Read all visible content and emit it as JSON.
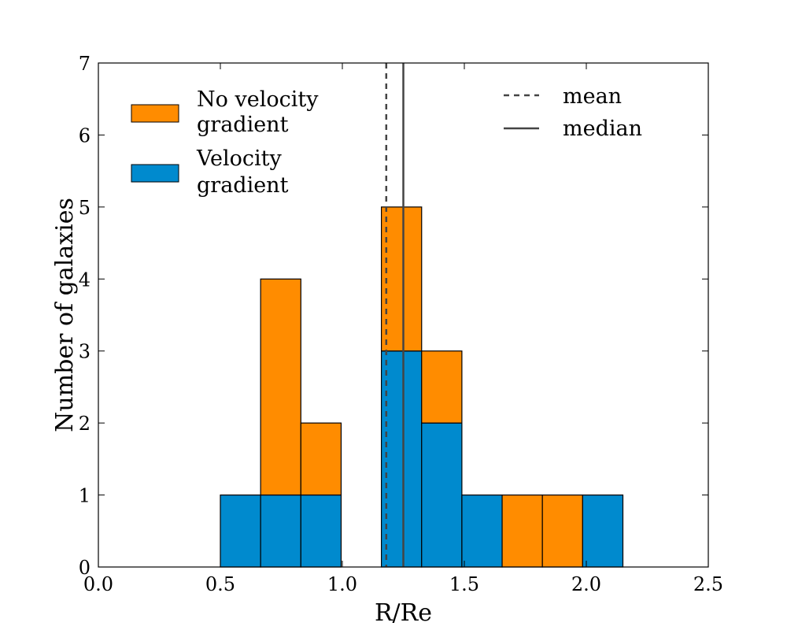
{
  "chart_data": {
    "type": "bar",
    "subtype": "stacked-histogram",
    "title": "",
    "xlabel": "R/Re",
    "ylabel": "Number of galaxies",
    "xlim": [
      0.0,
      2.5
    ],
    "ylim": [
      0,
      7
    ],
    "xticks": [
      "0.0",
      "0.5",
      "1.0",
      "1.5",
      "2.0",
      "2.5"
    ],
    "yticks": [
      "0",
      "1",
      "2",
      "3",
      "4",
      "5",
      "6",
      "7"
    ],
    "grid": false,
    "bins": [
      {
        "x0": 0.5,
        "x1": 0.665,
        "velocity_gradient": 1,
        "no_velocity_gradient": 0
      },
      {
        "x0": 0.665,
        "x1": 0.83,
        "velocity_gradient": 1,
        "no_velocity_gradient": 3
      },
      {
        "x0": 0.83,
        "x1": 0.995,
        "velocity_gradient": 1,
        "no_velocity_gradient": 1
      },
      {
        "x0": 1.16,
        "x1": 1.325,
        "velocity_gradient": 3,
        "no_velocity_gradient": 2
      },
      {
        "x0": 1.325,
        "x1": 1.49,
        "velocity_gradient": 2,
        "no_velocity_gradient": 1
      },
      {
        "x0": 1.49,
        "x1": 1.655,
        "velocity_gradient": 1,
        "no_velocity_gradient": 0
      },
      {
        "x0": 1.655,
        "x1": 1.82,
        "velocity_gradient": 0,
        "no_velocity_gradient": 1
      },
      {
        "x0": 1.82,
        "x1": 1.985,
        "velocity_gradient": 0,
        "no_velocity_gradient": 1
      },
      {
        "x0": 1.985,
        "x1": 2.15,
        "velocity_gradient": 1,
        "no_velocity_gradient": 0
      }
    ],
    "series": [
      {
        "name": "Velocity gradient",
        "key": "velocity_gradient",
        "color": "#008ace",
        "legend_lines": [
          "Velocity",
          "gradient"
        ]
      },
      {
        "name": "No velocity gradient",
        "key": "no_velocity_gradient",
        "color": "#ff8c00",
        "legend_lines": [
          "No velocity",
          "gradient"
        ]
      }
    ],
    "reference_lines": [
      {
        "name": "mean",
        "x": 1.18,
        "style": "dashed",
        "color": "#444444"
      },
      {
        "name": "median",
        "x": 1.25,
        "style": "solid",
        "color": "#444444"
      }
    ],
    "legend_placement": "top-left (histogram), top-right (lines)"
  }
}
